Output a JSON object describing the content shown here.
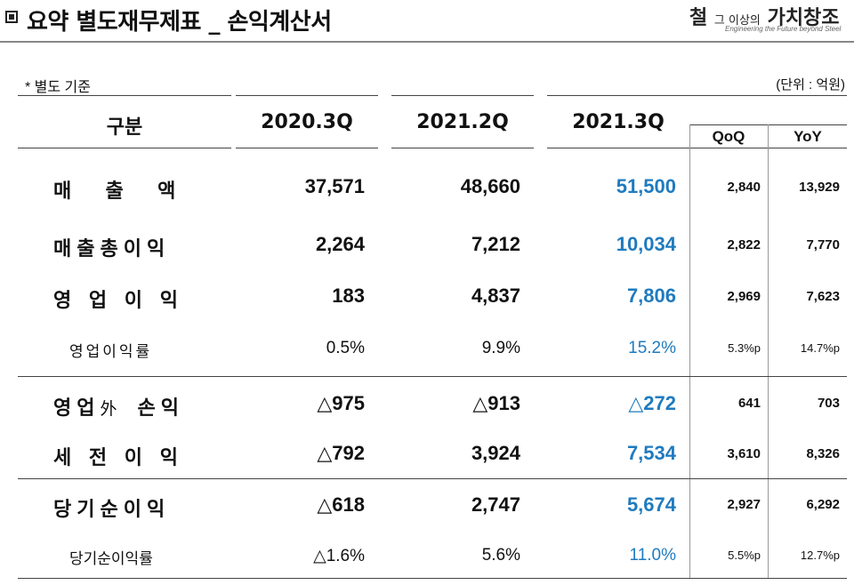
{
  "header": {
    "title": "요약 별도재무제표 _ 손익계산서",
    "logo_big_a": "철",
    "logo_small_a": "그 이상의",
    "logo_big_b": "가치창조",
    "logo_tagline": "Engineering the Future beyond Steel"
  },
  "table": {
    "basis": "* 별도 기준",
    "unit": "(단위 : 억원)",
    "columns": {
      "label": "구분",
      "c2020_3q": "2020.3Q",
      "c2021_2q": "2021.2Q",
      "c2021_3q": "2021.3Q",
      "qoq": "QoQ",
      "yoy": "YoY"
    },
    "rows": [
      {
        "label": "매  출  액",
        "v1": "37,571",
        "v2": "48,660",
        "v3": "51,500",
        "qoq": "2,840",
        "yoy": "13,929"
      },
      {
        "label": "매출총이익",
        "v1": "2,264",
        "v2": "7,212",
        "v3": "10,034",
        "qoq": "2,822",
        "yoy": "7,770"
      },
      {
        "label": "영 업 이 익",
        "v1": "183",
        "v2": "4,837",
        "v3": "7,806",
        "qoq": "2,969",
        "yoy": "7,623"
      },
      {
        "label": "영업이익률",
        "v1": "0.5%",
        "v2": "9.9%",
        "v3": "15.2%",
        "qoq": "5.3%p",
        "yoy": "14.7%p"
      },
      {
        "label_a": "영업",
        "label_b": "外",
        "label_c": "손익",
        "v1": "△975",
        "v2": "△913",
        "v3": "△272",
        "qoq": "641",
        "yoy": "703"
      },
      {
        "label": "세 전 이 익",
        "v1": "△792",
        "v2": "3,924",
        "v3": "7,534",
        "qoq": "3,610",
        "yoy": "8,326"
      },
      {
        "label": "당기순이익",
        "v1": "△618",
        "v2": "2,747",
        "v3": "5,674",
        "qoq": "2,927",
        "yoy": "6,292"
      },
      {
        "label": "당기순이익률",
        "v1": "△1.6%",
        "v2": "5.6%",
        "v3": "11.0%",
        "qoq": "5.5%p",
        "yoy": "12.7%p"
      }
    ]
  },
  "colors": {
    "highlight": "#1f7bbf"
  }
}
